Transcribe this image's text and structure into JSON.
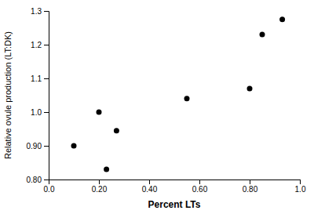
{
  "chart_data": {
    "type": "scatter",
    "x": [
      0.1,
      0.2,
      0.23,
      0.27,
      0.55,
      0.8,
      0.85,
      0.93
    ],
    "values": [
      0.9,
      1.0,
      0.83,
      0.945,
      1.04,
      1.07,
      1.23,
      1.275
    ],
    "xlabel": "Percent LTs",
    "ylabel": "Relative ovule production (LT:DK)",
    "xlim": [
      0.0,
      1.0
    ],
    "ylim": [
      0.8,
      1.3
    ],
    "xticks": [
      {
        "value": 0.0,
        "label": "0.0"
      },
      {
        "value": 0.2,
        "label": "0.20"
      },
      {
        "value": 0.4,
        "label": "0.40"
      },
      {
        "value": 0.6,
        "label": "0.60"
      },
      {
        "value": 0.8,
        "label": "0.80"
      },
      {
        "value": 1.0,
        "label": "1.0"
      }
    ],
    "yticks": [
      {
        "value": 0.8,
        "label": "0.80"
      },
      {
        "value": 0.9,
        "label": "0.90"
      },
      {
        "value": 1.0,
        "label": "1.0"
      },
      {
        "value": 1.1,
        "label": "1.1"
      },
      {
        "value": 1.2,
        "label": "1.2"
      },
      {
        "value": 1.3,
        "label": "1.3"
      }
    ],
    "color": "#000000",
    "grid": false
  }
}
